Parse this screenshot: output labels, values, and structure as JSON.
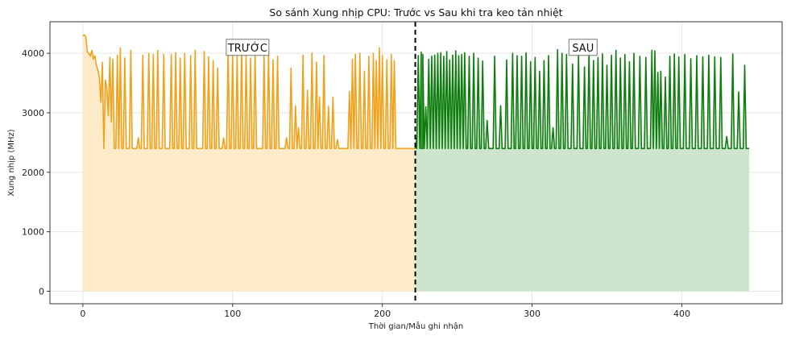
{
  "chart_data": {
    "type": "area",
    "title": "So sánh Xung nhịp CPU: Trước vs Sau khi tra keo tản nhiệt",
    "xlabel": "Thời gian/Mẫu ghi nhận",
    "ylabel": "Xung nhịp (MHz)",
    "xlim": [
      -22,
      467
    ],
    "ylim": [
      -210,
      4530
    ],
    "xticks": [
      0,
      100,
      200,
      300,
      400
    ],
    "yticks": [
      0,
      1000,
      2000,
      3000,
      4000
    ],
    "grid": true,
    "divider_x": 222,
    "series": [
      {
        "name": "",
        "color": "#f0a21c",
        "fill": "#fdebc9",
        "baseline": 2400,
        "x_start": 0,
        "x_end": 222,
        "head": [
          [
            0,
            4290
          ],
          [
            1,
            4310
          ],
          [
            2,
            4270
          ],
          [
            3,
            4020
          ],
          [
            4,
            4000
          ],
          [
            5,
            3950
          ],
          [
            6,
            4050
          ],
          [
            7,
            3900
          ],
          [
            8,
            3960
          ],
          [
            9,
            3800
          ],
          [
            10,
            3720
          ],
          [
            11,
            3600
          ],
          [
            12,
            3180
          ],
          [
            13,
            3850
          ],
          [
            14,
            2400
          ],
          [
            15,
            3550
          ],
          [
            16,
            3420
          ],
          [
            17,
            2950
          ],
          [
            18,
            3930
          ],
          [
            19,
            2850
          ],
          [
            20,
            3900
          ],
          [
            21,
            2400
          ]
        ],
        "spikes": [
          [
            23,
            3970
          ],
          [
            25,
            4090
          ],
          [
            28,
            3920
          ],
          [
            32,
            4050
          ],
          [
            35,
            2400
          ],
          [
            37,
            2580
          ],
          [
            40,
            3970
          ],
          [
            44,
            4000
          ],
          [
            47,
            3980
          ],
          [
            50,
            4050
          ],
          [
            54,
            3980
          ],
          [
            57,
            2400
          ],
          [
            59,
            3980
          ],
          [
            62,
            4010
          ],
          [
            65,
            3920
          ],
          [
            68,
            4000
          ],
          [
            72,
            3960
          ],
          [
            75,
            4050
          ],
          [
            78,
            2400
          ],
          [
            81,
            4030
          ],
          [
            84,
            3940
          ],
          [
            87,
            3880
          ],
          [
            90,
            3750
          ],
          [
            94,
            2580
          ],
          [
            97,
            4080
          ],
          [
            100,
            4000
          ],
          [
            103,
            3950
          ],
          [
            106,
            4090
          ],
          [
            109,
            3960
          ],
          [
            112,
            3920
          ],
          [
            115,
            4010
          ],
          [
            118,
            2400
          ],
          [
            121,
            3980
          ],
          [
            124,
            4040
          ],
          [
            127,
            3890
          ],
          [
            130,
            3950
          ],
          [
            133,
            2400
          ],
          [
            136,
            2580
          ],
          [
            139,
            3750
          ],
          [
            142,
            3120
          ],
          [
            144,
            2750
          ],
          [
            147,
            3970
          ],
          [
            150,
            3380
          ],
          [
            153,
            4000
          ],
          [
            156,
            3850
          ],
          [
            158,
            3270
          ],
          [
            161,
            3960
          ],
          [
            164,
            3110
          ],
          [
            167,
            3260
          ],
          [
            170,
            2550
          ],
          [
            178,
            3360
          ],
          [
            180,
            3900
          ],
          [
            182,
            3980
          ],
          [
            185,
            4000
          ],
          [
            188,
            3700
          ],
          [
            191,
            3950
          ],
          [
            194,
            4000
          ],
          [
            196,
            3880
          ],
          [
            198,
            4090
          ],
          [
            200,
            3960
          ],
          [
            203,
            3890
          ],
          [
            206,
            3980
          ],
          [
            208,
            3880
          ],
          [
            210,
            2400
          ]
        ]
      },
      {
        "name": "",
        "color": "#0e7d0e",
        "fill": "#cce5cc",
        "baseline": 2400,
        "x_start": 222,
        "x_end": 445,
        "head": [
          [
            222,
            2400
          ],
          [
            223,
            2580
          ]
        ],
        "spikes": [
          [
            224,
            3960
          ],
          [
            226,
            4020
          ],
          [
            227,
            3980
          ],
          [
            229,
            3100
          ],
          [
            231,
            3900
          ],
          [
            233,
            3950
          ],
          [
            235,
            3970
          ],
          [
            237,
            4000
          ],
          [
            239,
            4010
          ],
          [
            241,
            3950
          ],
          [
            243,
            4030
          ],
          [
            245,
            3890
          ],
          [
            247,
            3970
          ],
          [
            249,
            4040
          ],
          [
            251,
            3960
          ],
          [
            253,
            3980
          ],
          [
            255,
            4010
          ],
          [
            258,
            3950
          ],
          [
            261,
            4000
          ],
          [
            264,
            3920
          ],
          [
            267,
            3870
          ],
          [
            270,
            2870
          ],
          [
            275,
            3950
          ],
          [
            279,
            3120
          ],
          [
            283,
            3890
          ],
          [
            287,
            4000
          ],
          [
            290,
            3960
          ],
          [
            293,
            3950
          ],
          [
            296,
            4010
          ],
          [
            299,
            3860
          ],
          [
            302,
            3930
          ],
          [
            305,
            3700
          ],
          [
            308,
            3880
          ],
          [
            311,
            3960
          ],
          [
            314,
            2750
          ],
          [
            317,
            4060
          ],
          [
            320,
            4000
          ],
          [
            323,
            3980
          ],
          [
            327,
            3820
          ],
          [
            331,
            3980
          ],
          [
            335,
            3770
          ],
          [
            338,
            4030
          ],
          [
            341,
            3880
          ],
          [
            344,
            3930
          ],
          [
            347,
            3990
          ],
          [
            350,
            3800
          ],
          [
            353,
            3970
          ],
          [
            356,
            4050
          ],
          [
            359,
            3920
          ],
          [
            362,
            3980
          ],
          [
            365,
            3860
          ],
          [
            368,
            4000
          ],
          [
            372,
            3950
          ],
          [
            376,
            3930
          ],
          [
            380,
            4050
          ],
          [
            382,
            4040
          ],
          [
            384,
            3680
          ],
          [
            386,
            3700
          ],
          [
            389,
            3600
          ],
          [
            392,
            3950
          ],
          [
            395,
            3990
          ],
          [
            398,
            3940
          ],
          [
            402,
            3980
          ],
          [
            406,
            3910
          ],
          [
            410,
            3960
          ],
          [
            414,
            3940
          ],
          [
            418,
            3970
          ],
          [
            422,
            3940
          ],
          [
            426,
            3930
          ],
          [
            430,
            2600
          ],
          [
            434,
            3990
          ],
          [
            438,
            3350
          ],
          [
            442,
            3800
          ],
          [
            444,
            2400
          ]
        ]
      }
    ],
    "annotations": [
      {
        "text": "TRƯỚC",
        "x": 110,
        "y": 4100
      },
      {
        "text": "SAU",
        "x": 334,
        "y": 4100
      }
    ]
  }
}
